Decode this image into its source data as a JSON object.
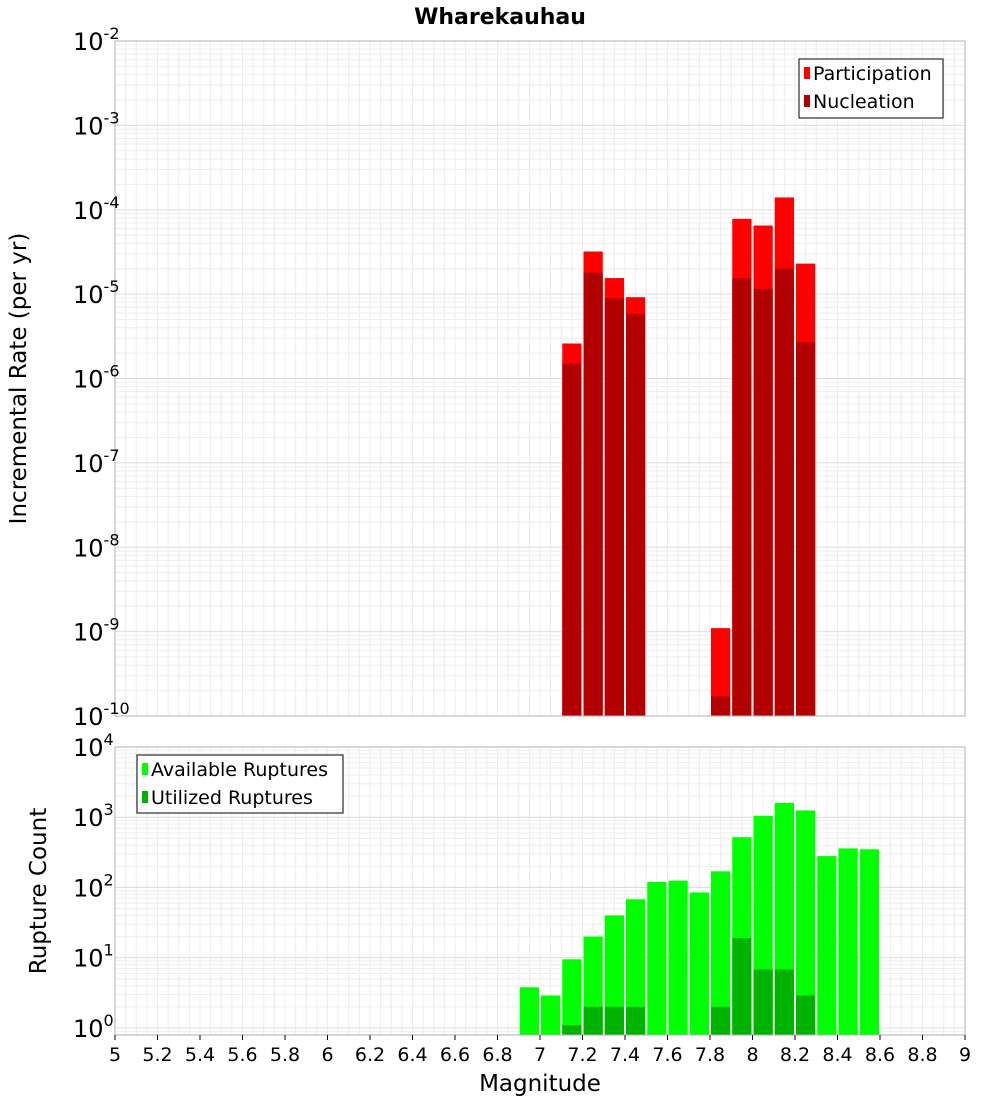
{
  "title": "Wharekauhau",
  "chart_data": [
    {
      "type": "bar",
      "ylabel": "Incremental Rate (per yr)",
      "yscale": "log",
      "ylim_exp": [
        -10,
        -2
      ],
      "ytick_exponents": [
        "-2",
        "-3",
        "-4",
        "-5",
        "-6",
        "-7",
        "-8",
        "-9",
        "-10"
      ],
      "legend_placement": "top-right",
      "grid": true,
      "series": [
        {
          "name": "Participation",
          "color": "#ff0000",
          "points": [
            {
              "x": 7.15,
              "y": 2.6e-06
            },
            {
              "x": 7.25,
              "y": 3.2e-05
            },
            {
              "x": 7.35,
              "y": 1.55e-05
            },
            {
              "x": 7.45,
              "y": 9.2e-06
            },
            {
              "x": 7.85,
              "y": 1.1e-09
            },
            {
              "x": 7.95,
              "y": 7.8e-05
            },
            {
              "x": 8.05,
              "y": 6.5e-05
            },
            {
              "x": 8.15,
              "y": 0.00014
            },
            {
              "x": 8.25,
              "y": 2.3e-05
            }
          ]
        },
        {
          "name": "Nucleation",
          "color": "#b30000",
          "points": [
            {
              "x": 7.15,
              "y": 1.5e-06
            },
            {
              "x": 7.25,
              "y": 1.8e-05
            },
            {
              "x": 7.35,
              "y": 9e-06
            },
            {
              "x": 7.45,
              "y": 5.8e-06
            },
            {
              "x": 7.85,
              "y": 1.7e-10
            },
            {
              "x": 7.95,
              "y": 1.55e-05
            },
            {
              "x": 8.05,
              "y": 1.15e-05
            },
            {
              "x": 8.15,
              "y": 2e-05
            },
            {
              "x": 8.25,
              "y": 2.7e-06
            }
          ]
        }
      ]
    },
    {
      "type": "bar",
      "xlabel": "Magnitude",
      "ylabel": "Rupture Count",
      "yscale": "log",
      "ylim_exp": [
        -0.1,
        4
      ],
      "ytick_exponents": [
        "4",
        "3",
        "2",
        "1",
        "0"
      ],
      "xlim": [
        5,
        9
      ],
      "xticks": [
        "5",
        "5.2",
        "5.4",
        "5.6",
        "5.8",
        "6",
        "6.2",
        "6.4",
        "6.6",
        "6.8",
        "7",
        "7.2",
        "7.4",
        "7.6",
        "7.8",
        "8",
        "8.2",
        "8.4",
        "8.6",
        "8.8",
        "9"
      ],
      "legend_placement": "top-left",
      "grid": true,
      "series": [
        {
          "name": "Available Ruptures",
          "color": "#00ff00",
          "points": [
            {
              "x": 6.95,
              "y": 3.8
            },
            {
              "x": 7.05,
              "y": 2.9
            },
            {
              "x": 7.15,
              "y": 9.5
            },
            {
              "x": 7.25,
              "y": 20
            },
            {
              "x": 7.35,
              "y": 40
            },
            {
              "x": 7.45,
              "y": 68
            },
            {
              "x": 7.55,
              "y": 120
            },
            {
              "x": 7.65,
              "y": 125
            },
            {
              "x": 7.75,
              "y": 85
            },
            {
              "x": 7.85,
              "y": 170
            },
            {
              "x": 7.95,
              "y": 520
            },
            {
              "x": 8.05,
              "y": 1050
            },
            {
              "x": 8.15,
              "y": 1600
            },
            {
              "x": 8.25,
              "y": 1250
            },
            {
              "x": 8.35,
              "y": 280
            },
            {
              "x": 8.45,
              "y": 360
            },
            {
              "x": 8.55,
              "y": 350
            }
          ]
        },
        {
          "name": "Utilized Ruptures",
          "color": "#00b300",
          "points": [
            {
              "x": 7.15,
              "y": 1.1
            },
            {
              "x": 7.25,
              "y": 2
            },
            {
              "x": 7.35,
              "y": 2
            },
            {
              "x": 7.45,
              "y": 2
            },
            {
              "x": 7.85,
              "y": 2
            },
            {
              "x": 7.95,
              "y": 19
            },
            {
              "x": 8.05,
              "y": 6.8
            },
            {
              "x": 8.15,
              "y": 6.8
            },
            {
              "x": 8.25,
              "y": 2.9
            }
          ]
        }
      ]
    }
  ]
}
